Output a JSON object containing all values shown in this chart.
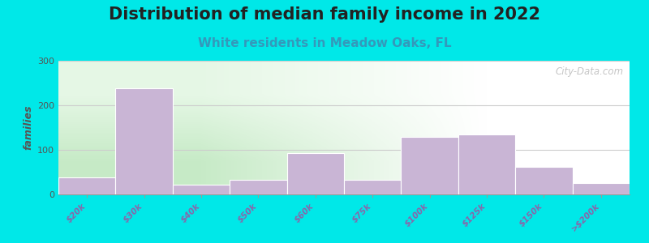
{
  "title": "Distribution of median family income in 2022",
  "subtitle": "White residents in Meadow Oaks, FL",
  "categories": [
    "$20k",
    "$30k",
    "$40k",
    "$50k",
    "$60k",
    "$75k",
    "$100k",
    "$125k",
    "$150k",
    ">$200k"
  ],
  "values": [
    38,
    238,
    22,
    32,
    92,
    32,
    130,
    135,
    62,
    25
  ],
  "bar_color": "#c9b5d5",
  "background_outer": "#00e8e8",
  "background_plot_left": "#c8e8c8",
  "background_plot_right": "#f8f8f8",
  "ylabel": "families",
  "ylim": [
    0,
    300
  ],
  "yticks": [
    0,
    100,
    200,
    300
  ],
  "title_fontsize": 15,
  "subtitle_fontsize": 11,
  "title_color": "#222222",
  "subtitle_color": "#3399bb",
  "watermark_text": "City-Data.com",
  "watermark_color": "#bbbbbb",
  "grid_color": "#cccccc",
  "tick_label_color": "#8866aa",
  "tick_label_fontsize": 7.5,
  "ylabel_color": "#555555",
  "ytick_color": "#555555"
}
